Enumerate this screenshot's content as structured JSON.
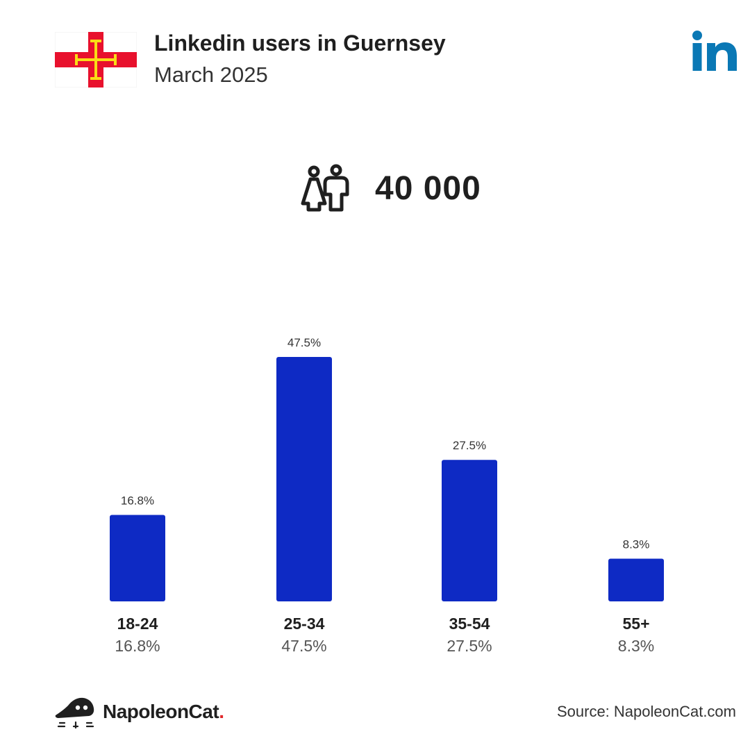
{
  "header": {
    "title": "Linkedin users in Guernsey",
    "subtitle": "March 2025"
  },
  "summary": {
    "total_users": "40 000",
    "icon": "people-icon"
  },
  "footer": {
    "brand_name": "NapoleonCat",
    "brand_dot": ".",
    "source": "Source: NapoleonCat.com"
  },
  "colors": {
    "bar": "#0e2ac4",
    "linkedin_brand": "#0a78b5",
    "flag_red": "#e8112d",
    "flag_gold": "#f9dd16"
  },
  "chart_data": {
    "type": "bar",
    "categories": [
      "18-24",
      "25-34",
      "35-54",
      "55+"
    ],
    "values": [
      16.8,
      47.5,
      27.5,
      8.3
    ],
    "value_labels": [
      "16.8%",
      "47.5%",
      "27.5%",
      "8.3%"
    ],
    "title": "",
    "xlabel": "",
    "ylabel": "",
    "ylim": [
      0,
      47.5
    ],
    "grid": false,
    "legend": "none"
  }
}
